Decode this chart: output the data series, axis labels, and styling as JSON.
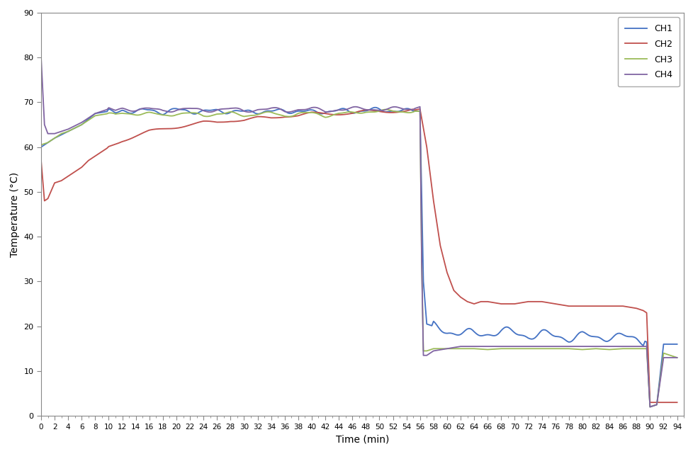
{
  "title": "",
  "xlabel": "Time (min)",
  "ylabel": "Temperature (°C)",
  "xlim": [
    0,
    95
  ],
  "ylim": [
    0,
    90
  ],
  "yticks": [
    0,
    10,
    20,
    30,
    40,
    50,
    60,
    70,
    80,
    90
  ],
  "xticks": [
    0,
    2,
    4,
    6,
    8,
    10,
    12,
    14,
    16,
    18,
    20,
    22,
    24,
    26,
    28,
    30,
    32,
    34,
    36,
    38,
    40,
    42,
    44,
    46,
    48,
    50,
    52,
    54,
    56,
    58,
    60,
    62,
    64,
    66,
    68,
    70,
    72,
    74,
    76,
    78,
    80,
    82,
    84,
    86,
    88,
    90,
    92,
    94
  ],
  "colors": {
    "CH1": "#4472C4",
    "CH2": "#C0504D",
    "CH3": "#9BBB59",
    "CH4": "#8064A2"
  },
  "legend_labels": [
    "CH1",
    "CH2",
    "CH3",
    "CH4"
  ],
  "background_color": "#FFFFFF"
}
